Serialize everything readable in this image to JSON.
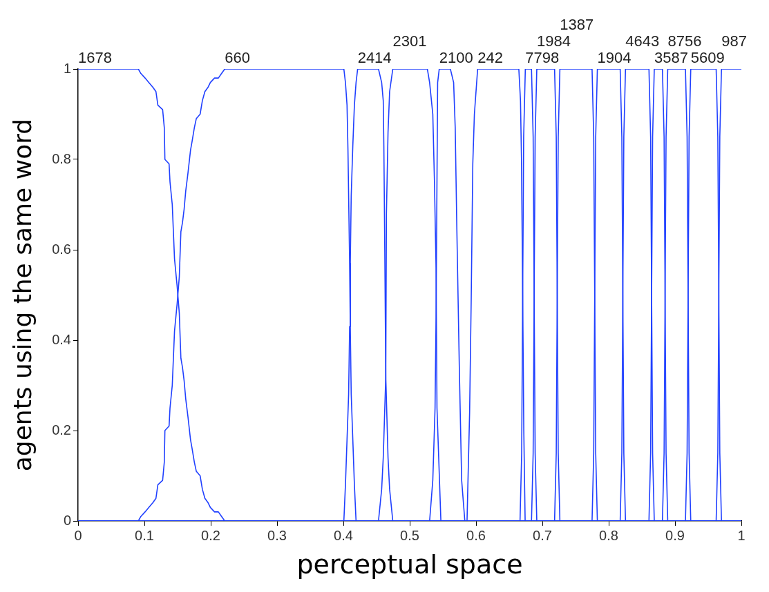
{
  "chart_data": {
    "type": "line",
    "xlabel": "perceptual space",
    "ylabel": "agents using the same word",
    "xlim": [
      0,
      1
    ],
    "ylim": [
      0,
      1
    ],
    "xticks": [
      0,
      0.1,
      0.2,
      0.3,
      0.4,
      0.5,
      0.6,
      0.7,
      0.8,
      0.9,
      1
    ],
    "yticks": [
      0,
      0.2,
      0.4,
      0.6,
      0.8,
      1
    ],
    "grid": false,
    "legend": false,
    "marker": "none",
    "line_style": "solid",
    "annotations": [
      {
        "text": "1678",
        "x": 0,
        "y": 1
      },
      {
        "text": "660",
        "x": 0.2211,
        "y": 1
      },
      {
        "text": "2414",
        "x": 0.4215,
        "y": 1
      },
      {
        "text": "2301",
        "x": 0.4745,
        "y": 1
      },
      {
        "text": "2100",
        "x": 0.5445,
        "y": 1
      },
      {
        "text": "242",
        "x": 0.6024,
        "y": 1
      },
      {
        "text": "7798",
        "x": 0.6743,
        "y": 1
      },
      {
        "text": "1984",
        "x": 0.6916,
        "y": 1
      },
      {
        "text": "1387",
        "x": 0.7264,
        "y": 1
      },
      {
        "text": "1904",
        "x": 0.7829,
        "y": 1
      },
      {
        "text": "4643",
        "x": 0.8253,
        "y": 1
      },
      {
        "text": "3587",
        "x": 0.8687,
        "y": 1
      },
      {
        "text": "8756",
        "x": 0.889,
        "y": 1
      },
      {
        "text": "5609",
        "x": 0.9237,
        "y": 1
      },
      {
        "text": "987",
        "x": 0.97,
        "y": 1
      }
    ],
    "series": [
      {
        "color": "#2040ff",
        "x": [
          0,
          0.0909,
          0.0947,
          0.101,
          0.1068,
          0.1126,
          0.1174,
          0.1203,
          0.1275,
          0.13,
          0.1309,
          0.1372,
          0.1386,
          0.142,
          0.1454,
          0.1493,
          0.1526,
          0.155,
          0.1574,
          0.1599,
          0.1623,
          0.1657,
          0.1695,
          0.1719,
          0.1753,
          0.1782,
          0.184,
          0.1874,
          0.1912,
          0.1961,
          0.1994,
          0.2057,
          0.2115,
          0.2163,
          0.2211,
          1
        ],
        "values": [
          1,
          1,
          0.99,
          0.98,
          0.97,
          0.96,
          0.95,
          0.92,
          0.91,
          0.87,
          0.8,
          0.79,
          0.75,
          0.7,
          0.58,
          0.52,
          0.46,
          0.36,
          0.34,
          0.31,
          0.27,
          0.23,
          0.18,
          0.16,
          0.13,
          0.11,
          0.1,
          0.07,
          0.05,
          0.04,
          0.03,
          0.02,
          0.02,
          0.01,
          0,
          0
        ]
      },
      {
        "color": "#2040ff",
        "x": [
          0,
          0.0909,
          0.0947,
          0.101,
          0.1068,
          0.1126,
          0.1174,
          0.1203,
          0.1275,
          0.13,
          0.1309,
          0.1372,
          0.1386,
          0.142,
          0.1454,
          0.1493,
          0.1526,
          0.155,
          0.1574,
          0.1599,
          0.1623,
          0.1657,
          0.1695,
          0.1719,
          0.1753,
          0.1782,
          0.184,
          0.1874,
          0.1912,
          0.1961,
          0.1994,
          0.2057,
          0.2115,
          0.2163,
          0.2211,
          0.4007,
          0.4031,
          0.4055,
          0.4069,
          0.4094,
          0.4104,
          0.4118,
          0.4142,
          0.4166,
          0.4191,
          1
        ],
        "values": [
          0,
          0,
          0.01,
          0.02,
          0.03,
          0.04,
          0.05,
          0.08,
          0.09,
          0.13,
          0.2,
          0.21,
          0.25,
          0.3,
          0.42,
          0.48,
          0.54,
          0.64,
          0.66,
          0.69,
          0.73,
          0.77,
          0.82,
          0.84,
          0.87,
          0.89,
          0.9,
          0.93,
          0.95,
          0.96,
          0.97,
          0.98,
          0.98,
          0.99,
          1,
          1,
          0.97,
          0.92,
          0.82,
          0.57,
          0.43,
          0.28,
          0.18,
          0.08,
          0,
          0
        ]
      },
      {
        "color": "#2040ff",
        "x": [
          0,
          0.4007,
          0.4031,
          0.4055,
          0.4079,
          0.4094,
          0.4104,
          0.4118,
          0.4142,
          0.4166,
          0.4191,
          0.4215,
          0.4529,
          0.4577,
          0.4601,
          0.461,
          0.4624,
          0.4639,
          0.4673,
          0.4697,
          0.4745,
          1
        ],
        "values": [
          0,
          0,
          0.08,
          0.18,
          0.28,
          0.43,
          0.57,
          0.72,
          0.83,
          0.92,
          0.97,
          1,
          1,
          0.97,
          0.93,
          0.83,
          0.6,
          0.32,
          0.14,
          0.07,
          0,
          0
        ]
      },
      {
        "color": "#2040ff",
        "x": [
          0,
          0.4529,
          0.4577,
          0.4601,
          0.4639,
          0.4649,
          0.4673,
          0.4697,
          0.4745,
          0.5266,
          0.53,
          0.5348,
          0.5373,
          0.5397,
          0.5411,
          0.547,
          1
        ],
        "values": [
          0,
          0,
          0.07,
          0.14,
          0.32,
          0.68,
          0.86,
          0.95,
          1,
          1,
          0.97,
          0.9,
          0.75,
          0.56,
          0.25,
          0,
          0
        ]
      },
      {
        "color": "#2040ff",
        "x": [
          0,
          0.53,
          0.5348,
          0.5382,
          0.5397,
          0.5421,
          0.5445,
          0.5613,
          0.5662,
          0.5686,
          0.571,
          0.5749,
          0.5783,
          0.5831,
          1
        ],
        "values": [
          0,
          0,
          0.09,
          0.25,
          0.45,
          0.97,
          1,
          1,
          0.97,
          0.87,
          0.65,
          0.33,
          0.09,
          0,
          0
        ]
      },
      {
        "color": "#2040ff",
        "x": [
          0,
          0.5864,
          0.5903,
          0.5927,
          0.5951,
          0.5975,
          0.6024,
          0.6645,
          0.667,
          0.6685,
          0.6703,
          0.672,
          0.674,
          1
        ],
        "values": [
          0,
          0,
          0.24,
          0.49,
          0.79,
          0.9,
          1,
          1,
          0.93,
          0.8,
          0.5,
          0.2,
          0,
          0
        ]
      },
      {
        "color": "#2040ff",
        "x": [
          0,
          0.6663,
          0.6688,
          0.6703,
          0.6718,
          0.6743,
          0.6836,
          0.6861,
          0.6876,
          0.6891,
          0.6916,
          1
        ],
        "values": [
          0,
          0,
          0.15,
          0.5,
          0.85,
          1,
          1,
          0.85,
          0.5,
          0.15,
          0,
          0
        ]
      },
      {
        "color": "#2040ff",
        "x": [
          0,
          0.6836,
          0.6861,
          0.6876,
          0.6891,
          0.6916,
          0.7184,
          0.7209,
          0.7224,
          0.7239,
          0.7264,
          1
        ],
        "values": [
          0,
          0,
          0.15,
          0.5,
          0.85,
          1,
          1,
          0.85,
          0.5,
          0.15,
          0,
          0
        ]
      },
      {
        "color": "#2040ff",
        "x": [
          0,
          0.7184,
          0.7209,
          0.7224,
          0.7239,
          0.7264,
          0.7749,
          0.7774,
          0.7789,
          0.7804,
          0.7829,
          1
        ],
        "values": [
          0,
          0,
          0.15,
          0.5,
          0.85,
          1,
          1,
          0.85,
          0.5,
          0.15,
          0,
          0
        ]
      },
      {
        "color": "#2040ff",
        "x": [
          0,
          0.7749,
          0.7774,
          0.7789,
          0.7804,
          0.7829,
          0.8173,
          0.8198,
          0.8213,
          0.8228,
          0.8253,
          1
        ],
        "values": [
          0,
          0,
          0.15,
          0.5,
          0.85,
          1,
          1,
          0.85,
          0.5,
          0.15,
          0,
          0
        ]
      },
      {
        "color": "#2040ff",
        "x": [
          0,
          0.8173,
          0.8198,
          0.8213,
          0.8228,
          0.8253,
          0.8607,
          0.8632,
          0.8647,
          0.8662,
          0.8687,
          1
        ],
        "values": [
          0,
          0,
          0.15,
          0.5,
          0.85,
          1,
          1,
          0.85,
          0.5,
          0.15,
          0,
          0
        ]
      },
      {
        "color": "#2040ff",
        "x": [
          0,
          0.8607,
          0.8632,
          0.8647,
          0.8662,
          0.8687,
          0.881,
          0.8835,
          0.885,
          0.8865,
          0.889,
          1
        ],
        "values": [
          0,
          0,
          0.15,
          0.5,
          0.85,
          1,
          1,
          0.85,
          0.5,
          0.15,
          0,
          0
        ]
      },
      {
        "color": "#2040ff",
        "x": [
          0,
          0.881,
          0.8835,
          0.885,
          0.8865,
          0.889,
          0.9157,
          0.9182,
          0.9197,
          0.9212,
          0.9237,
          1
        ],
        "values": [
          0,
          0,
          0.15,
          0.5,
          0.85,
          1,
          1,
          0.85,
          0.5,
          0.15,
          0,
          0
        ]
      },
      {
        "color": "#2040ff",
        "x": [
          0,
          0.9157,
          0.9182,
          0.9197,
          0.9212,
          0.9237,
          0.962,
          0.9645,
          0.966,
          0.9675,
          0.97,
          1
        ],
        "values": [
          0,
          0,
          0.15,
          0.5,
          0.85,
          1,
          1,
          0.85,
          0.5,
          0.15,
          0,
          0
        ]
      },
      {
        "color": "#2040ff",
        "x": [
          0,
          0.962,
          0.9645,
          0.966,
          0.9675,
          0.97,
          1
        ],
        "values": [
          0,
          0,
          0.15,
          0.5,
          0.85,
          1,
          1
        ]
      }
    ]
  }
}
